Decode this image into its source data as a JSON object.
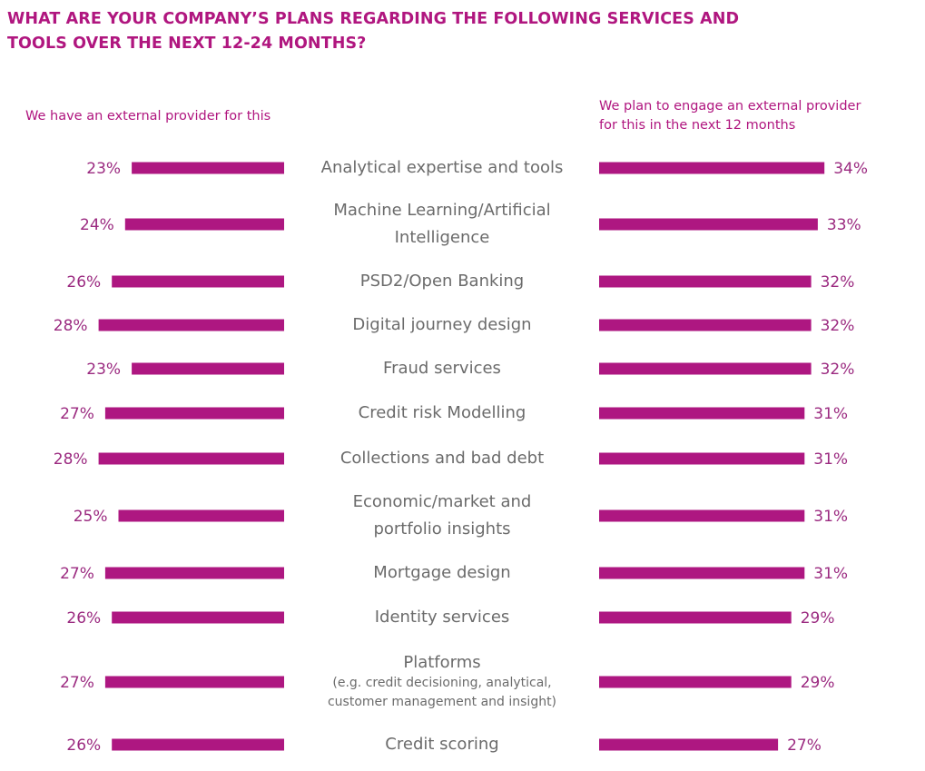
{
  "title": {
    "line1": "WHAT ARE YOUR COMPANY’S PLANS REGARDING THE FOLLOWING SERVICES AND",
    "line2": "TOOLS OVER THE NEXT 12-24 MONTHS?"
  },
  "legend": {
    "left": "We have an external provider for this",
    "right_line1": "We plan to engage an external provider",
    "right_line2": "for this in the next 12 months"
  },
  "colors": {
    "bar": "#ae1781",
    "title": "#b0167f",
    "label": "#6b6b6b"
  },
  "chart_data": {
    "type": "bar",
    "orientation": "horizontal-butterfly",
    "unit": "%",
    "categories": [
      {
        "lines": [
          "Analytical expertise and tools"
        ],
        "sub": []
      },
      {
        "lines": [
          "Machine Learning/Artificial",
          "Intelligence"
        ],
        "sub": []
      },
      {
        "lines": [
          "PSD2/Open Banking"
        ],
        "sub": []
      },
      {
        "lines": [
          "Digital journey design"
        ],
        "sub": []
      },
      {
        "lines": [
          "Fraud services"
        ],
        "sub": []
      },
      {
        "lines": [
          "Credit risk Modelling"
        ],
        "sub": []
      },
      {
        "lines": [
          "Collections and bad debt"
        ],
        "sub": []
      },
      {
        "lines": [
          "Economic/market and",
          "portfolio insights"
        ],
        "sub": []
      },
      {
        "lines": [
          "Mortgage design"
        ],
        "sub": []
      },
      {
        "lines": [
          "Identity services"
        ],
        "sub": []
      },
      {
        "lines": [
          "Platforms"
        ],
        "sub": [
          "(e.g. credit decisioning, analytical,",
          "customer management and insight)"
        ]
      },
      {
        "lines": [
          "Credit scoring"
        ],
        "sub": []
      }
    ],
    "series": [
      {
        "name": "We have an external provider for this",
        "side": "left",
        "values": [
          23,
          24,
          26,
          28,
          23,
          27,
          28,
          25,
          27,
          26,
          27,
          26
        ]
      },
      {
        "name": "We plan to engage an external provider for this in the next 12 months",
        "side": "right",
        "values": [
          34,
          33,
          32,
          32,
          32,
          31,
          31,
          31,
          31,
          29,
          29,
          27
        ]
      }
    ],
    "grid": false,
    "legend_placement": "top"
  }
}
